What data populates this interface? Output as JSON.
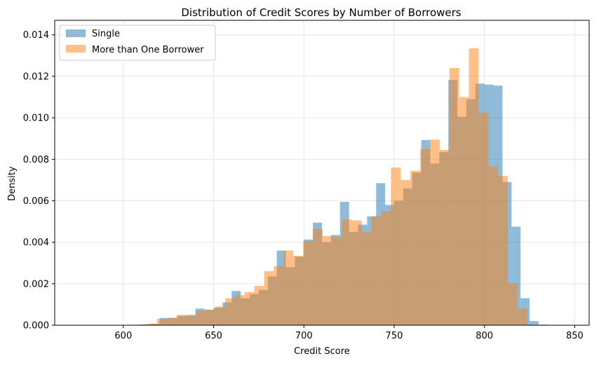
{
  "chart_data": {
    "type": "histogram",
    "title": "Distribution of Credit Scores by Number of Borrowers",
    "xlabel": "Credit Score",
    "ylabel": "Density",
    "xlim": [
      562,
      858
    ],
    "ylim": [
      0,
      0.0147
    ],
    "xticks": [
      600,
      650,
      700,
      750,
      800,
      850
    ],
    "yticks": [
      0.0,
      0.002,
      0.004,
      0.006,
      0.008,
      0.01,
      0.012,
      0.014
    ],
    "ytick_labels": [
      "0.000",
      "0.002",
      "0.004",
      "0.006",
      "0.008",
      "0.010",
      "0.012",
      "0.014"
    ],
    "grid": true,
    "legend_position": "top-left",
    "series": [
      {
        "name": "Single",
        "color": "#1f77b4",
        "alpha": 0.5,
        "bin_width": 5,
        "bins": [
          [
            570,
            0.0
          ],
          [
            575,
            0.0
          ],
          [
            580,
            0.0
          ],
          [
            585,
            0.0
          ],
          [
            590,
            0.0
          ],
          [
            595,
            0.0
          ],
          [
            600,
            0.0
          ],
          [
            605,
            2e-05
          ],
          [
            610,
            4e-05
          ],
          [
            615,
            6e-05
          ],
          [
            620,
            0.00035
          ],
          [
            625,
            0.00036
          ],
          [
            630,
            0.00045
          ],
          [
            635,
            0.0005
          ],
          [
            640,
            0.0008
          ],
          [
            645,
            0.00075
          ],
          [
            650,
            0.00085
          ],
          [
            655,
            0.0011
          ],
          [
            660,
            0.00165
          ],
          [
            665,
            0.0013
          ],
          [
            670,
            0.0015
          ],
          [
            675,
            0.0017
          ],
          [
            680,
            0.00235
          ],
          [
            685,
            0.0036
          ],
          [
            690,
            0.0028
          ],
          [
            695,
            0.0033
          ],
          [
            700,
            0.00413
          ],
          [
            705,
            0.00495
          ],
          [
            710,
            0.004
          ],
          [
            715,
            0.00435
          ],
          [
            720,
            0.00595
          ],
          [
            725,
            0.0045
          ],
          [
            730,
            0.00485
          ],
          [
            735,
            0.00525
          ],
          [
            740,
            0.00685
          ],
          [
            745,
            0.0058
          ],
          [
            750,
            0.006
          ],
          [
            755,
            0.0066
          ],
          [
            760,
            0.00735
          ],
          [
            765,
            0.00893
          ],
          [
            770,
            0.0078
          ],
          [
            775,
            0.00835
          ],
          [
            780,
            0.01182
          ],
          [
            785,
            0.01005
          ],
          [
            790,
            0.0109
          ],
          [
            795,
            0.01165
          ],
          [
            800,
            0.0116
          ],
          [
            805,
            0.01155
          ],
          [
            810,
            0.0069
          ],
          [
            815,
            0.00475
          ],
          [
            820,
            0.0013
          ],
          [
            825,
            0.0002
          ],
          [
            830,
            3e-05
          ],
          [
            835,
            0.0
          ],
          [
            840,
            0.0
          ],
          [
            845,
            0.0
          ]
        ]
      },
      {
        "name": "More than One Borrower",
        "color": "#ff7f0e",
        "alpha": 0.5,
        "bin_width": 5.4,
        "bins": [
          [
            570,
            0.0
          ],
          [
            575.4,
            0.0
          ],
          [
            580.8,
            0.0
          ],
          [
            586.2,
            0.0
          ],
          [
            591.6,
            0.0
          ],
          [
            597.0,
            0.0
          ],
          [
            602.4,
            2e-05
          ],
          [
            607.8,
            3e-05
          ],
          [
            613.2,
            8e-05
          ],
          [
            618.6,
            0.0003
          ],
          [
            624.0,
            0.00035
          ],
          [
            629.4,
            0.0005
          ],
          [
            634.8,
            0.00045
          ],
          [
            640.2,
            0.0007
          ],
          [
            645.6,
            0.00075
          ],
          [
            651.0,
            0.0009
          ],
          [
            656.4,
            0.0013
          ],
          [
            661.8,
            0.00145
          ],
          [
            667.2,
            0.0016
          ],
          [
            672.6,
            0.0019
          ],
          [
            678.0,
            0.0026
          ],
          [
            683.4,
            0.00285
          ],
          [
            688.8,
            0.0036
          ],
          [
            694.2,
            0.00335
          ],
          [
            699.6,
            0.00405
          ],
          [
            705.0,
            0.00465
          ],
          [
            710.4,
            0.0043
          ],
          [
            715.8,
            0.00425
          ],
          [
            721.2,
            0.0051
          ],
          [
            726.6,
            0.00505
          ],
          [
            732.0,
            0.0045
          ],
          [
            737.4,
            0.00525
          ],
          [
            742.8,
            0.0055
          ],
          [
            748.2,
            0.0076
          ],
          [
            753.6,
            0.007
          ],
          [
            759.0,
            0.00745
          ],
          [
            764.4,
            0.0085
          ],
          [
            769.8,
            0.00895
          ],
          [
            775.2,
            0.00845
          ],
          [
            780.6,
            0.0124
          ],
          [
            786.0,
            0.011
          ],
          [
            791.4,
            0.01335
          ],
          [
            796.8,
            0.01025
          ],
          [
            802.2,
            0.00765
          ],
          [
            807.6,
            0.0072
          ],
          [
            813.0,
            0.002
          ],
          [
            818.4,
            0.0008
          ],
          [
            823.8,
            0.0
          ]
        ]
      }
    ]
  }
}
